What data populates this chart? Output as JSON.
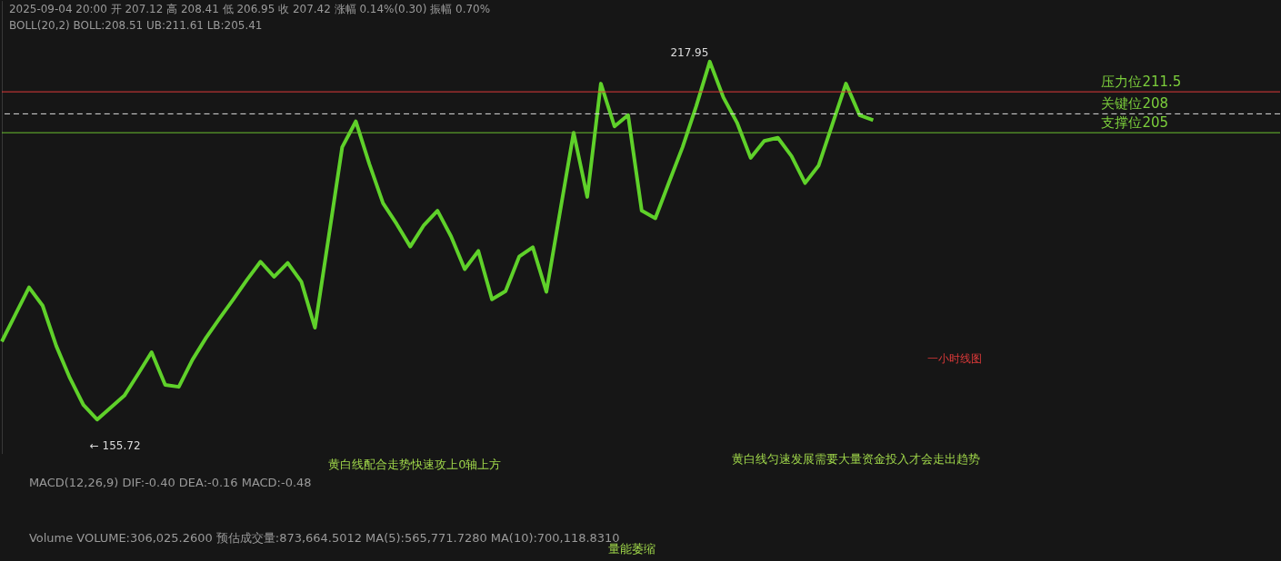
{
  "chart_data": [
    {
      "type": "line",
      "tick_labels": false,
      "marker": "none",
      "line_style": "solid",
      "ylim": [
        154,
        226
      ],
      "categories": [
        null,
        null,
        null,
        null,
        null,
        null,
        null,
        null,
        null,
        null,
        null,
        null,
        null,
        null,
        null,
        null,
        null,
        null,
        null,
        null,
        null,
        null,
        null,
        null,
        null,
        null,
        null,
        null,
        null,
        null,
        null,
        null,
        null,
        null,
        null,
        null,
        null,
        null,
        null,
        null,
        null,
        null,
        null,
        null,
        null,
        null,
        null,
        null,
        null,
        null,
        null,
        null,
        null,
        null,
        null,
        null,
        null,
        null,
        null,
        null,
        null,
        null,
        null,
        null,
        null
      ],
      "series": [
        {
          "color": "#5fd12a",
          "values": [
            171.8,
            176.1,
            180.4,
            177.5,
            171.1,
            166.0,
            161.7,
            159.4,
            161.3,
            163.2,
            166.6,
            170.1,
            164.9,
            164.6,
            168.9,
            172.4,
            175.5,
            178.5,
            181.6,
            184.5,
            182.1,
            184.3,
            181.3,
            174.0,
            188.3,
            202.7,
            206.8,
            200.0,
            193.8,
            190.5,
            186.9,
            190.3,
            192.6,
            188.5,
            183.3,
            186.2,
            178.5,
            179.8,
            185.3,
            186.8,
            179.7,
            192.4,
            205.0,
            194.8,
            212.8,
            206.0,
            207.8,
            192.6,
            191.4,
            197.1,
            202.7,
            209.2,
            216.3,
            210.6,
            206.6,
            201.0,
            203.7,
            204.2,
            201.3,
            197.0,
            199.8,
            206.3,
            212.8,
            207.8,
            207.0
          ]
        }
      ],
      "ref_lines": [
        {
          "axis": "y",
          "value": 211.5,
          "label": "压力位211.5",
          "color": "#e03a3a",
          "line_style": "solid"
        },
        {
          "axis": "y",
          "value": 208,
          "label": "关键位208",
          "color": "#dddddd",
          "line_style": "dashed"
        },
        {
          "axis": "y",
          "value": 205,
          "label": "支撑位205",
          "color": "#6cc030",
          "line_style": "solid"
        }
      ],
      "annotations": [
        "2025-09-04 20:00 开 207.12 高 208.41 低 206.95 收 207.42 涨幅 0.14%(0.30) 振幅 0.70%",
        "BOLL(20,2) BOLL:208.51 UB:211.61 LB:205.41",
        "217.95",
        "← 155.72",
        "一小时线图"
      ]
    },
    {
      "type": "other",
      "annotations": [
        "黄白线配合走势快速攻上0轴上方",
        "黄白线匀速发展需要大量资金投入才会走出趋势",
        "MACD(12,26,9) DIF:-0.40 DEA:-0.16 MACD:-0.48",
        "Volume VOLUME:306,025.2600 预估成交量:873,664.5012 MA(5):565,771.7280 MA(10):700,118.8310",
        "量能萎缩"
      ]
    }
  ]
}
